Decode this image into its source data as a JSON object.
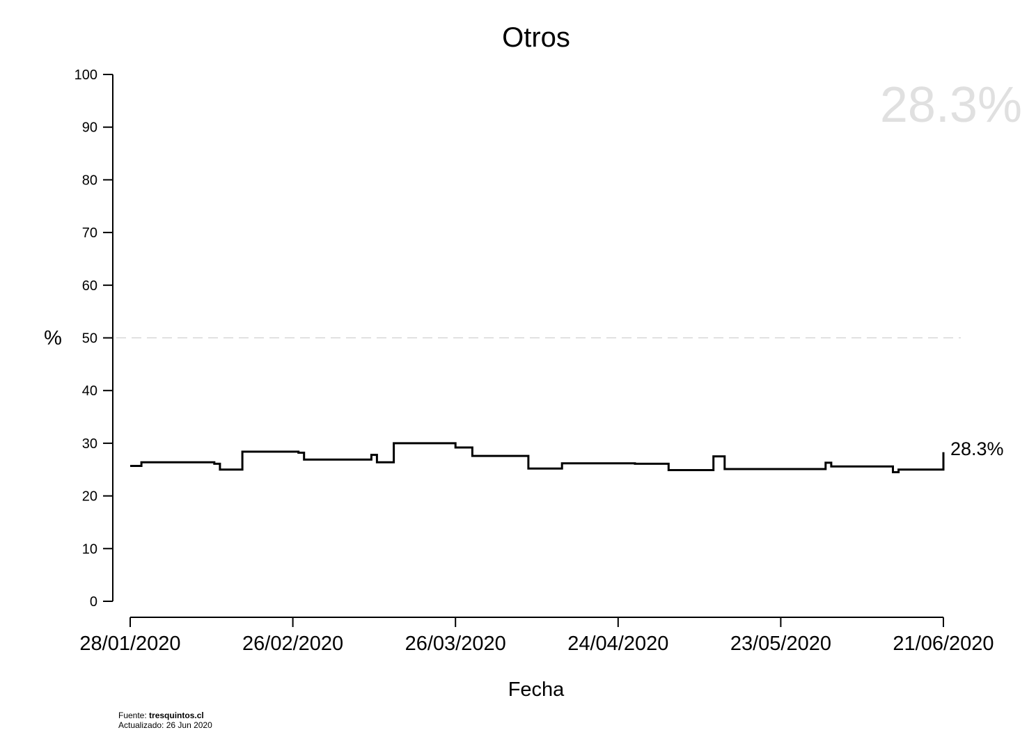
{
  "chart_data": {
    "type": "line",
    "step": true,
    "title": "Otros",
    "xlabel": "Fecha",
    "ylabel": "%",
    "ylim": [
      0,
      100
    ],
    "yticks": [
      0,
      10,
      20,
      30,
      40,
      50,
      60,
      70,
      80,
      90,
      100
    ],
    "xticks": [
      "28/01/2020",
      "26/02/2020",
      "26/03/2020",
      "24/04/2020",
      "23/05/2020",
      "21/06/2020"
    ],
    "xrange": [
      "2020-01-28",
      "2020-06-21"
    ],
    "reference_line": 50,
    "series": [
      {
        "color": "#000000",
        "points": [
          [
            "2020-01-28",
            25.7
          ],
          [
            "2020-01-30",
            26.4
          ],
          [
            "2020-02-12",
            26.1
          ],
          [
            "2020-02-13",
            25.0
          ],
          [
            "2020-02-17",
            28.4
          ],
          [
            "2020-02-27",
            28.2
          ],
          [
            "2020-02-28",
            26.9
          ],
          [
            "2020-03-11",
            27.8
          ],
          [
            "2020-03-12",
            26.4
          ],
          [
            "2020-03-15",
            30.0
          ],
          [
            "2020-03-26",
            29.2
          ],
          [
            "2020-03-29",
            27.6
          ],
          [
            "2020-04-08",
            25.2
          ],
          [
            "2020-04-14",
            26.2
          ],
          [
            "2020-04-27",
            26.1
          ],
          [
            "2020-05-03",
            24.9
          ],
          [
            "2020-05-11",
            27.5
          ],
          [
            "2020-05-13",
            25.1
          ],
          [
            "2020-05-31",
            26.3
          ],
          [
            "2020-06-01",
            25.6
          ],
          [
            "2020-06-12",
            24.5
          ],
          [
            "2020-06-13",
            25.0
          ],
          [
            "2020-06-21",
            28.3
          ]
        ]
      }
    ],
    "latest_label": "28.3%",
    "latest_watermark": "28.3%"
  },
  "footer": {
    "source_prefix": "Fuente: ",
    "source_name": "tresquintos.cl",
    "updated": "Actualizado: 26 Jun 2020"
  }
}
